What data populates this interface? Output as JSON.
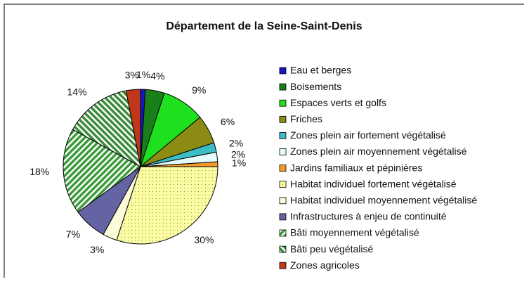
{
  "chart_data": {
    "type": "pie",
    "title": "Département de la Seine-Saint-Denis",
    "categories": [
      "Eau et berges",
      "Boisements",
      "Espaces verts et golfs",
      "Friches",
      "Zones plein air fortement végétalisé",
      "Zones plein air moyennement végétalisé",
      "Jardins familiaux et pépinières",
      "Habitat individuel fortement végétalisé",
      "Habitat individuel moyennement végétalisé",
      "Infrastructures à enjeu de continuité",
      "Bâti moyennement végétalisé",
      "Bâti peu végétalisé",
      "Zones agricoles"
    ],
    "values": [
      1,
      4,
      9,
      6,
      2,
      2,
      1,
      30,
      3,
      7,
      18,
      14,
      3
    ],
    "value_labels": [
      "1%",
      "4%",
      "9%",
      "6%",
      "2%",
      "2%",
      "1%",
      "30%",
      "3%",
      "7%",
      "18%",
      "14%",
      "3%"
    ],
    "colors": [
      "#1414c8",
      "#1a7f1a",
      "#1ee01e",
      "#8c8c14",
      "#3cbcc4",
      "#e4fcfc",
      "#f49a28",
      "#fcfca4",
      "#fcfcd8",
      "#6464a4",
      "#3c9c3c",
      "#3c8c3c",
      "#c0381c"
    ],
    "hatches": [
      "solid",
      "solid",
      "solid",
      "solid",
      "solid",
      "solid",
      "solid",
      "dots",
      "solid",
      "solid",
      "stripes",
      "stripes",
      "solid"
    ],
    "legend": "right"
  }
}
